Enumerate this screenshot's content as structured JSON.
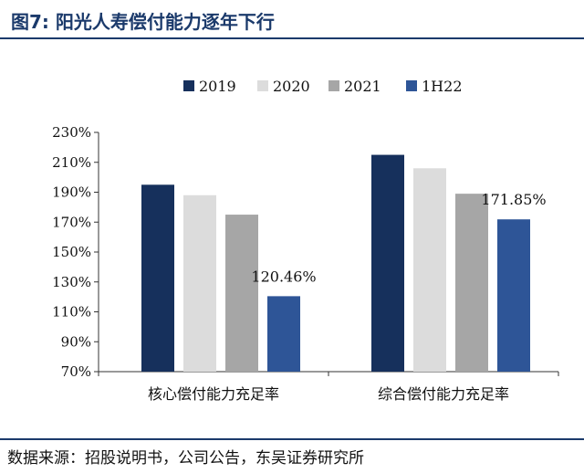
{
  "figure": {
    "title": "图7:  阳光人寿偿付能力逐年下行",
    "source": "数据来源：招股说明书，公司公告，东吴证券研究所"
  },
  "chart_data": {
    "type": "bar",
    "title": "阳光人寿偿付能力逐年下行",
    "xlabel": "",
    "ylabel": "",
    "ylim": [
      70,
      230
    ],
    "yticks": [
      70,
      90,
      110,
      130,
      150,
      170,
      190,
      210,
      230
    ],
    "ytick_labels": [
      "70%",
      "90%",
      "110%",
      "130%",
      "150%",
      "170%",
      "190%",
      "210%",
      "230%"
    ],
    "categories": [
      "核心偿付能力充足率",
      "综合偿付能力充足率"
    ],
    "series": [
      {
        "name": "2019",
        "color": "#16305c",
        "values": [
          195,
          215
        ]
      },
      {
        "name": "2020",
        "color": "#dcdcdc",
        "values": [
          188,
          206
        ]
      },
      {
        "name": "2021",
        "color": "#a6a6a6",
        "values": [
          175,
          189
        ]
      },
      {
        "name": "1H22",
        "color": "#2e5597",
        "values": [
          120.46,
          171.85
        ]
      }
    ],
    "annotations": [
      {
        "category_index": 0,
        "series": "1H22",
        "text": "120.46%"
      },
      {
        "category_index": 1,
        "series": "1H22",
        "text": "171.85%"
      }
    ],
    "legend_position": "top-center",
    "grid": false
  }
}
